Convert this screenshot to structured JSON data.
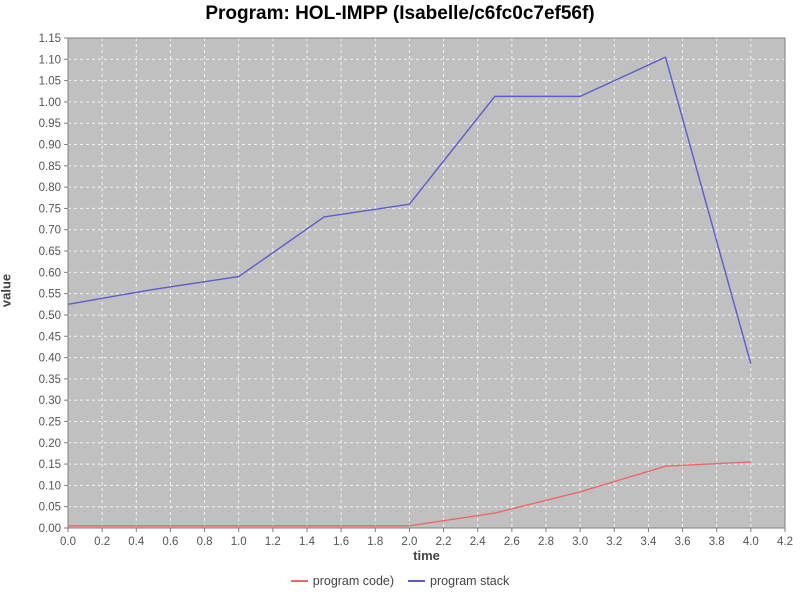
{
  "title": "Program: HOL-IMPP (Isabelle/c6fc0c7ef56f)",
  "chart_data": {
    "type": "line",
    "title": "Program: HOL-IMPP (Isabelle/c6fc0c7ef56f)",
    "xlabel": "time",
    "ylabel": "value",
    "xlim": [
      0.0,
      4.2
    ],
    "ylim": [
      0.0,
      1.15
    ],
    "x_tick_step": 0.2,
    "y_tick_step": 0.05,
    "x_tick_decimals": 1,
    "y_tick_decimals": 2,
    "grid": true,
    "legend_position": "bottom",
    "x": [
      0.0,
      0.5,
      1.0,
      1.5,
      2.0,
      2.5,
      3.0,
      3.5,
      4.0
    ],
    "series": [
      {
        "name": "program code)",
        "color": "#ee6666",
        "values": [
          0.005,
          0.005,
          0.005,
          0.005,
          0.005,
          0.035,
          0.085,
          0.145,
          0.155
        ]
      },
      {
        "name": "program stack",
        "color": "#5c5ccd",
        "values": [
          0.525,
          0.56,
          0.59,
          0.73,
          0.76,
          1.013,
          1.013,
          1.105,
          0.385
        ]
      }
    ]
  },
  "colors": {
    "plot_background": "#c0c0c0",
    "grid_line": "#f2f2f2",
    "axis_border": "#7f7f7f",
    "tick_label": "#555555",
    "axis_label": "#444444",
    "title_text": "#000000"
  }
}
